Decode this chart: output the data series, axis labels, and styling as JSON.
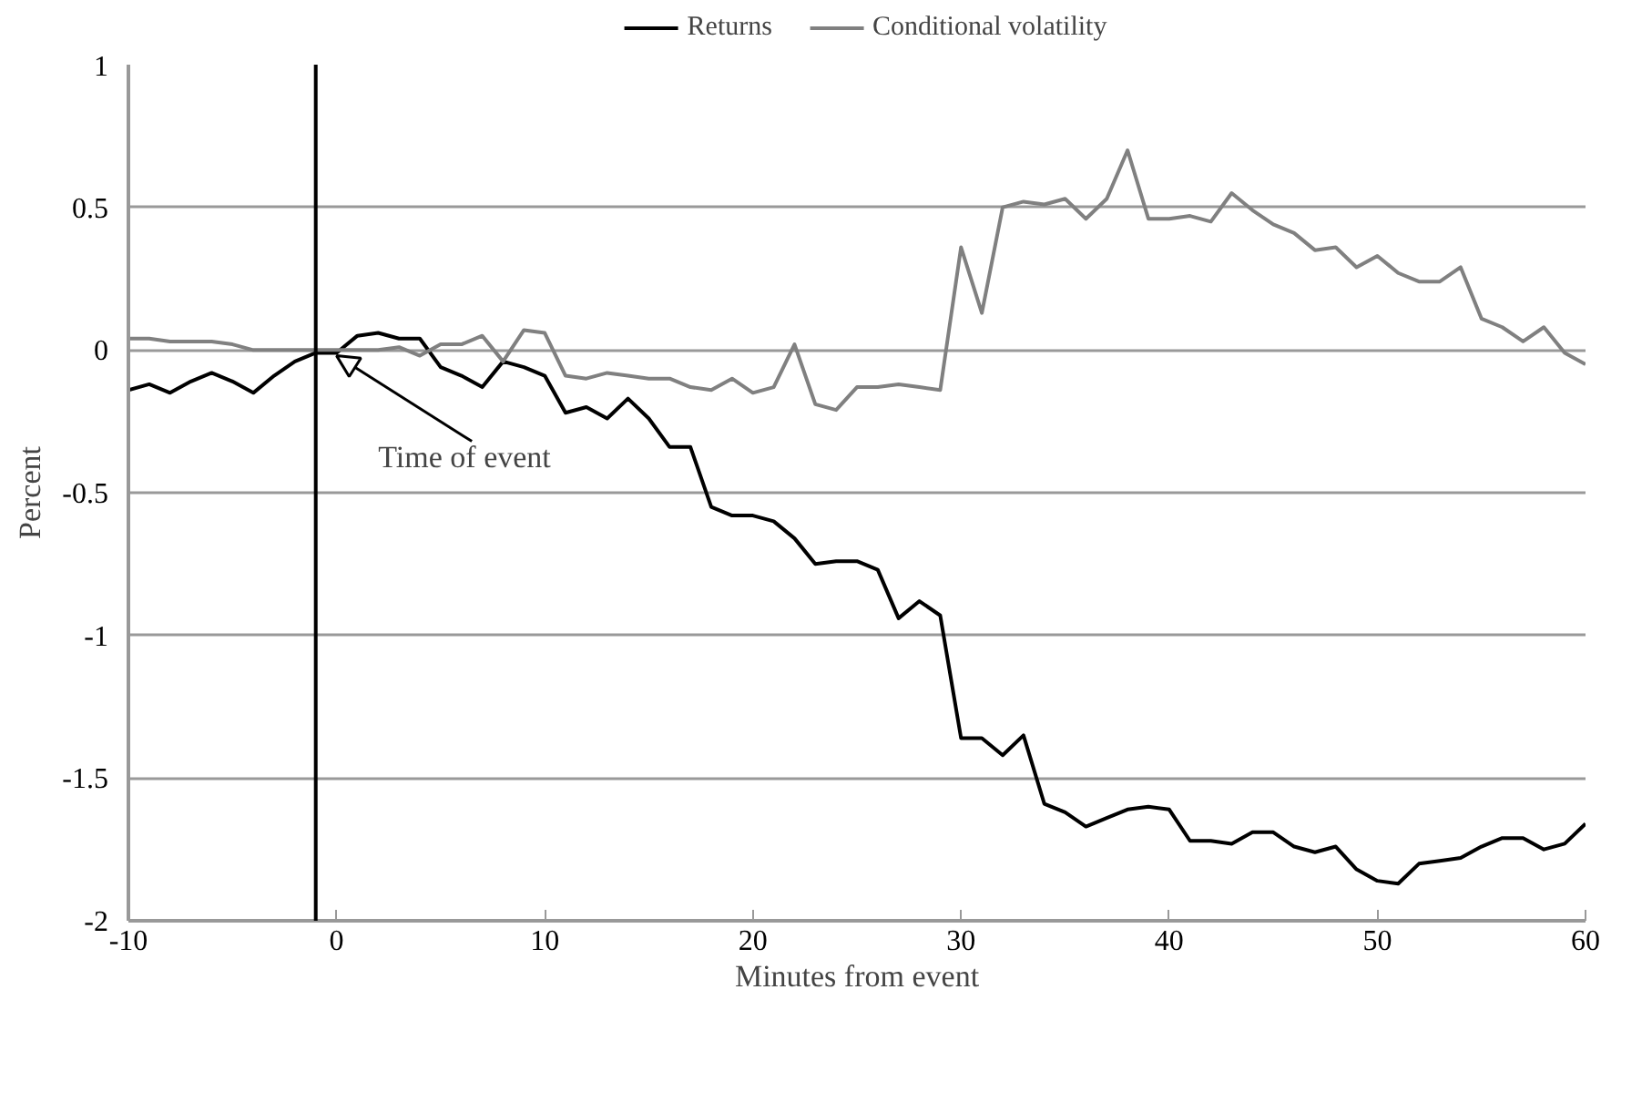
{
  "chart_data": {
    "type": "line",
    "xlabel": "Minutes from event",
    "ylabel": "Percent",
    "x": [
      -10,
      -9,
      -8,
      -7,
      -6,
      -5,
      -4,
      -3,
      -2,
      -1,
      0,
      1,
      2,
      3,
      4,
      5,
      6,
      7,
      8,
      9,
      10,
      11,
      12,
      13,
      14,
      15,
      16,
      17,
      18,
      19,
      20,
      21,
      22,
      23,
      24,
      25,
      26,
      27,
      28,
      29,
      30,
      31,
      32,
      33,
      34,
      35,
      36,
      37,
      38,
      39,
      40,
      41,
      42,
      43,
      44,
      45,
      46,
      47,
      48,
      49,
      50,
      51,
      52,
      53,
      54,
      55,
      56,
      57,
      58,
      59,
      60
    ],
    "series": [
      {
        "name": "Returns",
        "color": "#000000",
        "values": [
          -0.14,
          -0.12,
          -0.15,
          -0.11,
          -0.08,
          -0.11,
          -0.15,
          -0.09,
          -0.04,
          -0.01,
          -0.01,
          0.05,
          0.06,
          0.04,
          0.04,
          -0.06,
          -0.09,
          -0.13,
          -0.04,
          -0.06,
          -0.09,
          -0.22,
          -0.2,
          -0.24,
          -0.17,
          -0.24,
          -0.34,
          -0.34,
          -0.55,
          -0.58,
          -0.58,
          -0.6,
          -0.66,
          -0.75,
          -0.74,
          -0.74,
          -0.77,
          -0.94,
          -0.88,
          -0.93,
          -1.36,
          -1.36,
          -1.42,
          -1.35,
          -1.59,
          -1.62,
          -1.67,
          -1.64,
          -1.61,
          -1.6,
          -1.61,
          -1.72,
          -1.72,
          -1.73,
          -1.69,
          -1.69,
          -1.74,
          -1.76,
          -1.74,
          -1.82,
          -1.86,
          -1.87,
          -1.8,
          -1.79,
          -1.78,
          -1.74,
          -1.71,
          -1.71,
          -1.75,
          -1.73,
          -1.66
        ]
      },
      {
        "name": "Conditional volatility",
        "color": "#808080",
        "values": [
          0.04,
          0.04,
          0.03,
          0.03,
          0.03,
          0.02,
          0.0,
          0.0,
          0.0,
          0.0,
          0.0,
          0.0,
          0.0,
          0.01,
          -0.02,
          0.02,
          0.02,
          0.05,
          -0.04,
          0.07,
          0.06,
          -0.09,
          -0.1,
          -0.08,
          -0.09,
          -0.1,
          -0.1,
          -0.13,
          -0.14,
          -0.1,
          -0.15,
          -0.13,
          0.02,
          -0.19,
          -0.21,
          -0.13,
          -0.13,
          -0.12,
          -0.13,
          -0.14,
          0.36,
          0.13,
          0.5,
          0.52,
          0.51,
          0.53,
          0.46,
          0.53,
          0.7,
          0.46,
          0.46,
          0.47,
          0.45,
          0.55,
          0.49,
          0.44,
          0.41,
          0.35,
          0.36,
          0.29,
          0.33,
          0.27,
          0.24,
          0.24,
          0.29,
          0.11,
          0.08,
          0.03,
          0.08,
          -0.01,
          -0.05
        ]
      }
    ],
    "xlim": [
      -10,
      60
    ],
    "xticks": [
      -10,
      0,
      10,
      20,
      30,
      40,
      50,
      60
    ],
    "ylim": [
      -2,
      1
    ],
    "yticks": [
      -2,
      -1.5,
      -1,
      -0.5,
      0,
      0.5,
      1
    ],
    "grid": "y",
    "legend": "top",
    "marker": "none",
    "line_style": "solid",
    "ref_lines": [
      {
        "axis": "x",
        "value": -1,
        "color": "#000000"
      }
    ],
    "annotations": [
      {
        "text": "Time of event",
        "x": 0,
        "y": 0
      }
    ]
  }
}
